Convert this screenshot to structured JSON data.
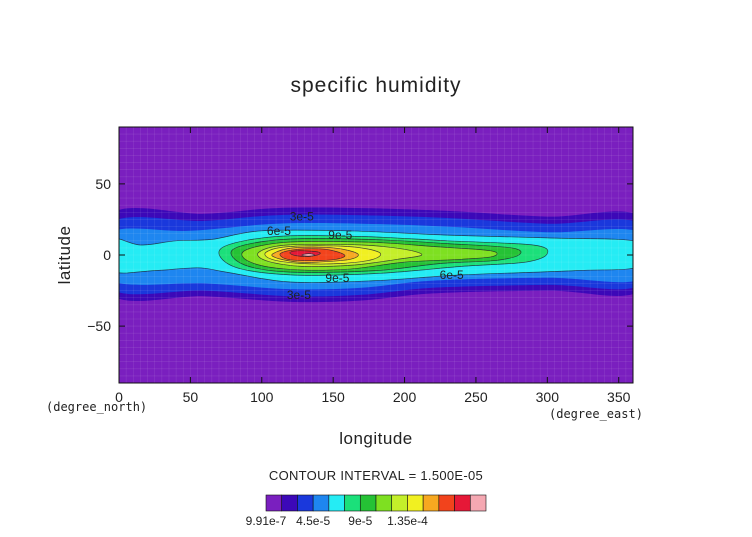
{
  "chart_data": {
    "type": "heatmap",
    "subtype": "filled-contour",
    "title": "specific humidity",
    "xlabel": "longitude",
    "ylabel": "latitude",
    "x_unit": "(degree_east)",
    "y_unit": "(degree_north)",
    "xlim": [
      0,
      360
    ],
    "ylim": [
      -90,
      90
    ],
    "x_ticks": [
      0,
      50,
      100,
      150,
      200,
      250,
      300,
      350
    ],
    "y_ticks": [
      -50,
      0,
      50
    ],
    "contour_interval_text": "CONTOUR INTERVAL = 1.500E-05",
    "colorbar": {
      "labels": [
        "9.91e-7",
        "4.5e-5",
        "9e-5",
        "1.35e-4"
      ],
      "colors": [
        "#7a1fbf",
        "#3c08b8",
        "#1a38dc",
        "#1e86f0",
        "#25ecf4",
        "#1be07a",
        "#25c235",
        "#7ee021",
        "#c4ef2a",
        "#f1f021",
        "#f7a820",
        "#f2431c",
        "#e61837",
        "#f5a8b2"
      ]
    },
    "background_color": "#7a1fbf",
    "contour_labels": [
      {
        "text": "3e-5",
        "lon": 128,
        "lat": 27
      },
      {
        "text": "6e-5",
        "lon": 112,
        "lat": 17
      },
      {
        "text": "9e-5",
        "lon": 155,
        "lat": 14
      },
      {
        "text": "9e-5",
        "lon": 153,
        "lat": -16
      },
      {
        "text": "6e-5",
        "lon": 233,
        "lat": -14
      },
      {
        "text": "3e-5",
        "lon": 126,
        "lat": -28
      }
    ]
  }
}
